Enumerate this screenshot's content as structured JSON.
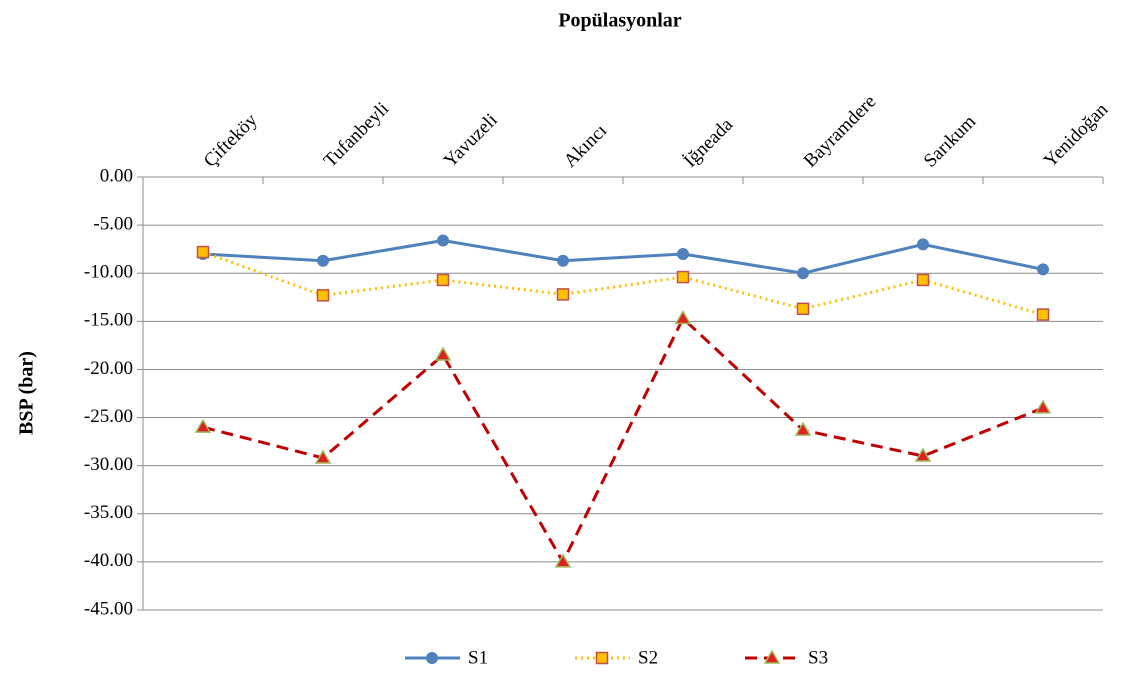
{
  "chart_data": {
    "type": "line",
    "title": "Popülasyonlar",
    "y_label": "BSP (bar)",
    "categories": [
      "Çifteköy",
      "Tufanbeyli",
      "Yavuzeli",
      "Akıncı",
      "İğneada",
      "Bayramdere",
      "Sarıkum",
      "Yenidoğan"
    ],
    "series": [
      {
        "name": "S1",
        "color": "#4f81bd",
        "values": [
          -8.0,
          -8.7,
          -6.6,
          -8.7,
          -8.0,
          -10.0,
          -7.0,
          -9.6
        ]
      },
      {
        "name": "S2",
        "color": "#ffc000",
        "values": [
          -7.8,
          -12.3,
          -10.7,
          -12.2,
          -10.4,
          -13.7,
          -10.7,
          -14.3
        ]
      },
      {
        "name": "S3",
        "color": "#c00000",
        "values": [
          -26.0,
          -29.2,
          -18.5,
          -40.0,
          -14.7,
          -26.3,
          -29.0,
          -24.0
        ]
      }
    ],
    "ylim": [
      -45,
      0
    ],
    "yticks": [
      {
        "value": 0,
        "label": "0.00"
      },
      {
        "value": -5,
        "label": "-5.00"
      },
      {
        "value": -10,
        "label": "-10.00"
      },
      {
        "value": -15,
        "label": "-15.00"
      },
      {
        "value": -20,
        "label": "-20.00"
      },
      {
        "value": -25,
        "label": "-25.00"
      },
      {
        "value": -30,
        "label": "-30.00"
      },
      {
        "value": -35,
        "label": "-35.00"
      },
      {
        "value": -40,
        "label": "-40.00"
      },
      {
        "value": -45,
        "label": "-45.00"
      }
    ],
    "grid": true,
    "legend": "bottom"
  }
}
